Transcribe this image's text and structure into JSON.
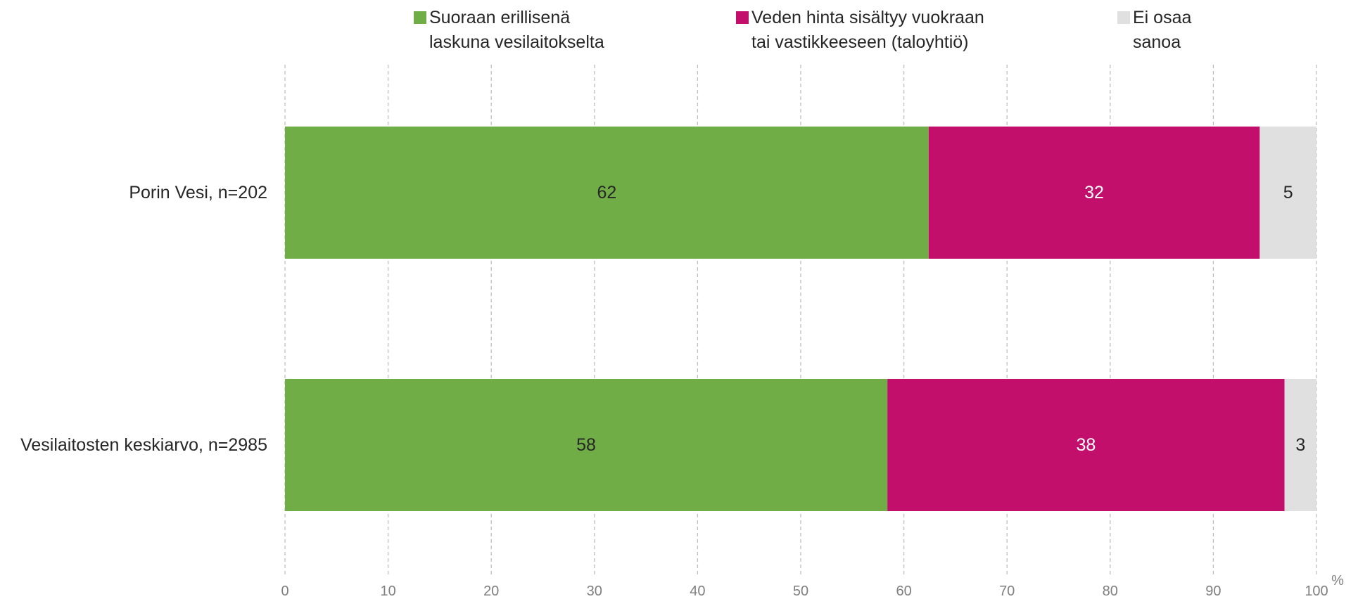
{
  "chart_data": {
    "type": "bar",
    "orientation": "horizontal",
    "stacked": true,
    "categories": [
      "Porin Vesi, n=202",
      "Vesilaitosten keskiarvo, n=2985"
    ],
    "series": [
      {
        "name": "Suoraan erillisenä laskuna vesilaitokselta",
        "legend_lines": [
          "Suoraan erillisenä",
          "laskuna vesilaitokselta"
        ],
        "color": "#70ad47",
        "label_color": "#262626",
        "values": [
          62,
          58
        ]
      },
      {
        "name": "Veden hinta sisältyy vuokraan tai vastikkeeseen (taloyhtiö)",
        "legend_lines": [
          "Veden hinta sisältyy vuokraan",
          "tai vastikkeeseen (taloyhtiö)"
        ],
        "color": "#c20f6c",
        "label_color": "#ffffff",
        "values": [
          32,
          38
        ]
      },
      {
        "name": "Ei osaa sanoa",
        "legend_lines": [
          "Ei osaa",
          "sanoa"
        ],
        "color": "#e0e0e0",
        "label_color": "#262626",
        "values": [
          5,
          3
        ]
      }
    ],
    "plot_totals": [
      [
        62.4,
        32.1,
        5.5
      ],
      [
        58.4,
        38.5,
        3.1
      ]
    ],
    "xlim": [
      0,
      100
    ],
    "xticks": [
      "0",
      "10",
      "20",
      "30",
      "40",
      "50",
      "60",
      "70",
      "80",
      "90",
      "100"
    ],
    "xunit": "%",
    "grid": "vertical dashed",
    "legend_position": "top"
  }
}
